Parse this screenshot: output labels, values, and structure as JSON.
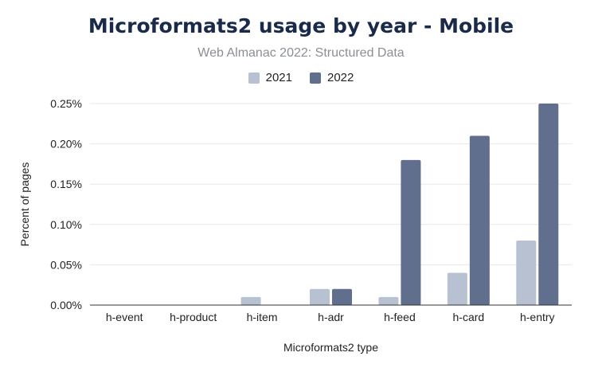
{
  "chart_data": {
    "type": "bar",
    "title": "Microformats2 usage by year - Mobile",
    "subtitle": "Web Almanac 2022: Structured Data",
    "xlabel": "Microformats2 type",
    "ylabel": "Percent of pages",
    "categories": [
      "h-event",
      "h-product",
      "h-item",
      "h-adr",
      "h-feed",
      "h-card",
      "h-entry"
    ],
    "series": [
      {
        "name": "2021",
        "color": "#b7c1d1",
        "values": [
          0,
          0,
          0.01,
          0.02,
          0.01,
          0.04,
          0.08
        ]
      },
      {
        "name": "2022",
        "color": "#5f6f8d",
        "values": [
          0,
          0,
          0,
          0.02,
          0.18,
          0.21,
          0.25
        ]
      }
    ],
    "ylim": [
      0,
      0.25
    ],
    "yticks": [
      "0.00%",
      "0.05%",
      "0.10%",
      "0.15%",
      "0.20%",
      "0.25%"
    ],
    "ytick_values": [
      0,
      0.05,
      0.1,
      0.15,
      0.2,
      0.25
    ],
    "grid": true,
    "legend_position": "top-center"
  }
}
